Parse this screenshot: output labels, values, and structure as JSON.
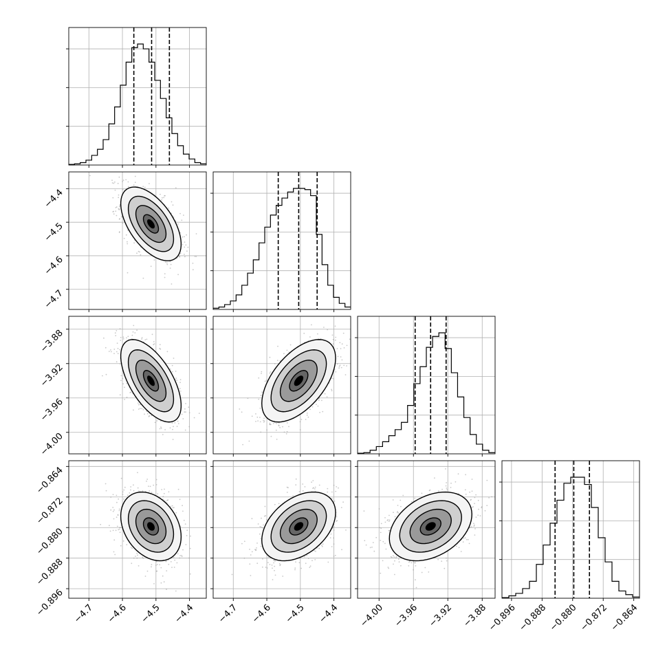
{
  "colors": {
    "line": "#000000",
    "grid": "#b0b0b0",
    "scatter": "#9a9a9a",
    "density_scale": [
      "#f4f4f4",
      "#cfcfcf",
      "#9a9a9a",
      "#666666",
      "#333333",
      "#000000"
    ]
  },
  "chart_data": {
    "type": "corner",
    "parameters": [
      {
        "index": 0,
        "range": [
          -4.76,
          -4.35
        ],
        "ticks": [
          -4.7,
          -4.6,
          -4.5,
          -4.4
        ],
        "tick_labels": [
          "−4.7",
          "−4.6",
          "−4.5",
          "−4.4"
        ],
        "quantiles": [
          -4.566,
          -4.513,
          -4.46
        ],
        "hist_values": [
          0.005,
          0.01,
          0.02,
          0.04,
          0.08,
          0.13,
          0.21,
          0.34,
          0.48,
          0.66,
          0.85,
          0.97,
          1.0,
          0.96,
          0.85,
          0.7,
          0.55,
          0.39,
          0.26,
          0.16,
          0.09,
          0.05,
          0.02,
          0.01
        ]
      },
      {
        "index": 1,
        "range": [
          -4.76,
          -4.35
        ],
        "ticks": [
          -4.7,
          -4.6,
          -4.5,
          -4.4
        ],
        "tick_labels": [
          "−4.7",
          "−4.6",
          "−4.5",
          "−4.4"
        ],
        "quantiles": [
          -4.566,
          -4.505,
          -4.45
        ],
        "hist_values": [
          0.01,
          0.02,
          0.04,
          0.07,
          0.12,
          0.2,
          0.3,
          0.41,
          0.55,
          0.68,
          0.78,
          0.86,
          0.92,
          0.97,
          1.0,
          1.0,
          0.99,
          0.94,
          0.62,
          0.37,
          0.2,
          0.1,
          0.05,
          0.02
        ]
      },
      {
        "index": 2,
        "range": [
          -4.025,
          -3.865
        ],
        "ticks": [
          -4.0,
          -3.96,
          -3.92,
          -3.88
        ],
        "tick_labels": [
          "−4.00",
          "−3.96",
          "−3.92",
          "−3.88"
        ],
        "quantiles": [
          -3.958,
          -3.94,
          -3.922
        ],
        "hist_values": [
          0.005,
          0.01,
          0.03,
          0.06,
          0.1,
          0.15,
          0.2,
          0.26,
          0.4,
          0.58,
          0.72,
          0.88,
          0.97,
          1.0,
          0.87,
          0.67,
          0.47,
          0.3,
          0.16,
          0.08,
          0.03,
          0.01
        ]
      },
      {
        "index": 3,
        "range": [
          -0.8985,
          -0.8625
        ],
        "ticks": [
          -0.896,
          -0.888,
          -0.88,
          -0.872,
          -0.864
        ],
        "tick_labels": [
          "−0.896",
          "−0.888",
          "−0.880",
          "−0.872",
          "−0.864"
        ],
        "quantiles": [
          -0.8846,
          -0.8797,
          -0.8756
        ],
        "hist_values": [
          0.005,
          0.02,
          0.04,
          0.08,
          0.14,
          0.28,
          0.44,
          0.62,
          0.81,
          0.95,
          1.0,
          1.0,
          0.94,
          0.75,
          0.5,
          0.3,
          0.14,
          0.06,
          0.03,
          0.01
        ]
      }
    ],
    "pairs": [
      {
        "row": 1,
        "col": 0,
        "mean": [
          -4.515,
          -4.505
        ],
        "sd": [
          0.045,
          0.055
        ],
        "rho": -0.55
      },
      {
        "row": 2,
        "col": 0,
        "mean": [
          -4.515,
          -3.94
        ],
        "sd": [
          0.045,
          0.024
        ],
        "rho": -0.6
      },
      {
        "row": 2,
        "col": 1,
        "mean": [
          -4.505,
          -3.94
        ],
        "sd": [
          0.055,
          0.024
        ],
        "rho": 0.55
      },
      {
        "row": 3,
        "col": 0,
        "mean": [
          -4.515,
          -0.8797
        ],
        "sd": [
          0.045,
          0.0045
        ],
        "rho": -0.3
      },
      {
        "row": 3,
        "col": 1,
        "mean": [
          -4.505,
          -0.8797
        ],
        "sd": [
          0.055,
          0.0045
        ],
        "rho": 0.4
      },
      {
        "row": 3,
        "col": 2,
        "mean": [
          -3.94,
          -0.8797
        ],
        "sd": [
          0.024,
          0.0045
        ],
        "rho": 0.35
      }
    ],
    "contour_levels_sigma": [
      0.5,
      1.0,
      1.5,
      2.0
    ],
    "grid": true,
    "xlabel": "",
    "ylabel": ""
  }
}
